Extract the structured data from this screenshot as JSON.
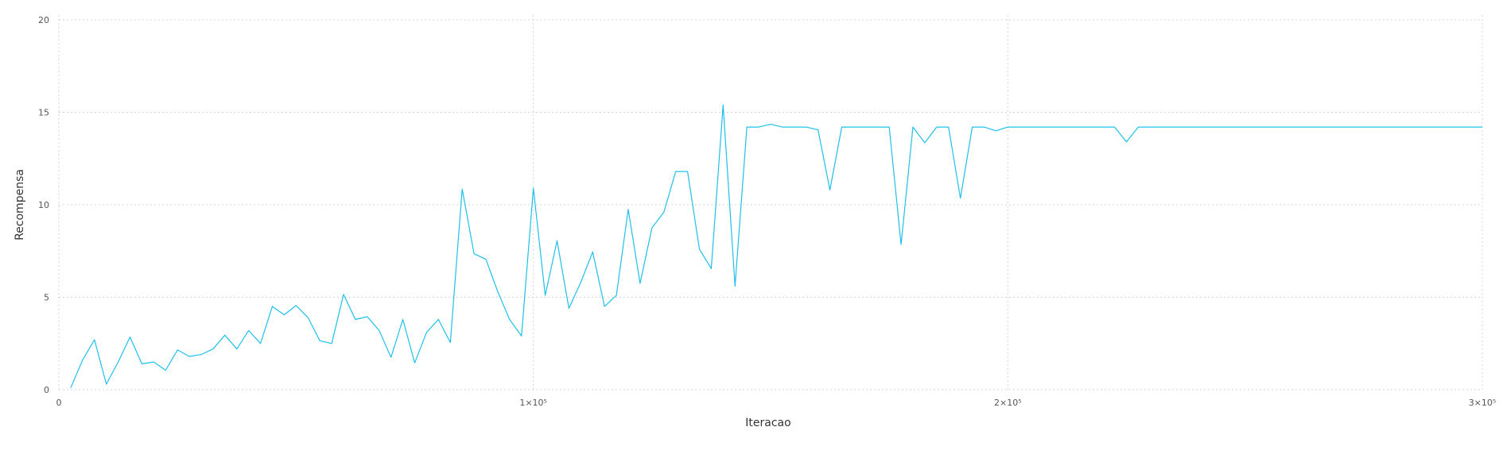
{
  "chart_data": {
    "type": "line",
    "title": "",
    "xlabel": "Iteracao",
    "ylabel": "Recompensa",
    "xlim": [
      0,
      300000
    ],
    "ylim": [
      0,
      20
    ],
    "x_ticks": [
      {
        "value": 0,
        "label": "0"
      },
      {
        "value": 100000,
        "label": "1×10⁵"
      },
      {
        "value": 200000,
        "label": "2×10⁵"
      },
      {
        "value": 300000,
        "label": "3×10⁵"
      }
    ],
    "y_ticks": [
      {
        "value": 0,
        "label": "0"
      },
      {
        "value": 5,
        "label": "5"
      },
      {
        "value": 10,
        "label": "10"
      },
      {
        "value": 15,
        "label": "15"
      },
      {
        "value": 20,
        "label": "20"
      }
    ],
    "grid": true,
    "legend": "none",
    "color": "#1ec0ea",
    "series": [
      {
        "x": [
          2500,
          5000,
          7500,
          10000,
          12500,
          15000,
          17500,
          20000,
          22500,
          25000,
          27500,
          30000,
          32500,
          35000,
          37500,
          40000,
          42500,
          45000,
          47500,
          50000,
          52500,
          55000,
          57500,
          60000,
          62500,
          65000,
          67500,
          70000,
          72500,
          75000,
          77500,
          80000,
          82500,
          85000,
          87500,
          90000,
          92500,
          95000,
          97500,
          100000,
          102500,
          105000,
          107500,
          110000,
          112500,
          115000,
          117500,
          120000,
          122500,
          125000,
          127500,
          130000,
          132500,
          135000,
          137500,
          140000,
          142500,
          145000,
          147500,
          150000,
          152500,
          155000,
          157500,
          160000,
          162500,
          165000,
          167500,
          170000,
          172500,
          175000,
          177500,
          180000,
          182500,
          185000,
          187500,
          190000,
          192500,
          195000,
          197500,
          200000,
          202500,
          205000,
          207500,
          210000,
          212500,
          215000,
          217500,
          220000,
          222500,
          225000,
          227500,
          300000
        ],
        "y": [
          0.1,
          1.6,
          2.7,
          0.3,
          1.5,
          2.85,
          1.4,
          1.5,
          1.05,
          2.15,
          1.8,
          1.9,
          2.2,
          2.95,
          2.2,
          3.2,
          2.5,
          4.5,
          4.05,
          4.55,
          3.9,
          2.65,
          2.5,
          5.15,
          3.8,
          3.95,
          3.2,
          1.75,
          3.8,
          1.45,
          3.1,
          3.8,
          2.55,
          10.85,
          7.35,
          7.05,
          5.3,
          3.8,
          2.9,
          10.9,
          5.1,
          8.05,
          4.4,
          5.8,
          7.45,
          4.5,
          5.1,
          9.75,
          5.75,
          8.75,
          9.6,
          11.8,
          11.8,
          7.6,
          6.55,
          15.4,
          5.6,
          14.2,
          14.2,
          14.35,
          14.2,
          14.2,
          14.2,
          14.05,
          10.8,
          14.2,
          14.2,
          14.2,
          14.2,
          14.2,
          7.85,
          14.2,
          13.35,
          14.2,
          14.2,
          10.35,
          14.2,
          14.2,
          14.0,
          14.2,
          14.2,
          14.2,
          14.2,
          14.2,
          14.2,
          14.2,
          14.2,
          14.2,
          14.2,
          13.4,
          14.2,
          14.2
        ]
      }
    ]
  }
}
